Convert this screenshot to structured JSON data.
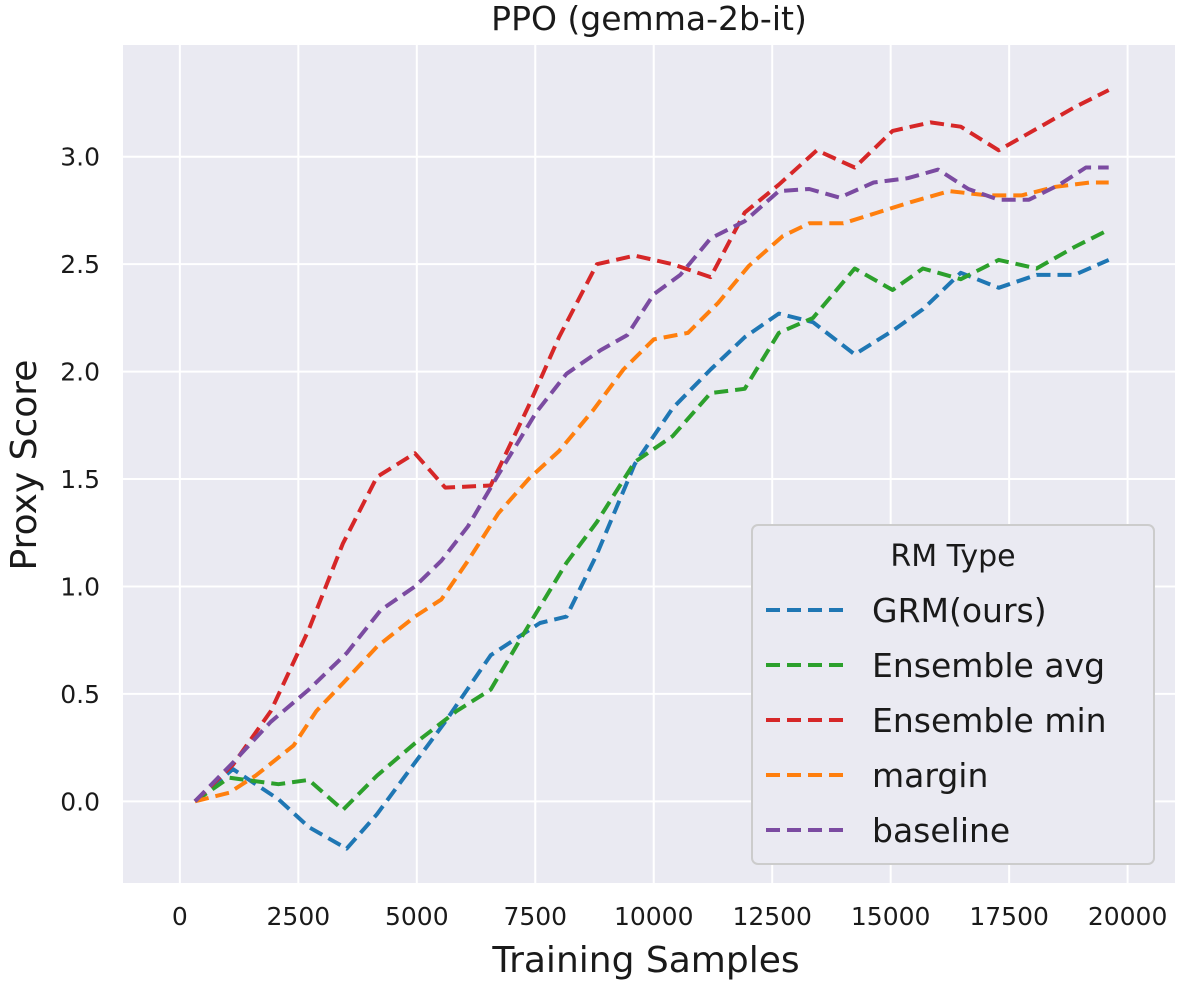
{
  "chart_data": {
    "type": "line",
    "title": "PPO (gemma-2b-it)",
    "xlabel": "Training Samples",
    "ylabel": "Proxy Score",
    "xlim": [
      -1200,
      21000
    ],
    "ylim": [
      -0.38,
      3.52
    ],
    "xticks": [
      0,
      2500,
      5000,
      7500,
      10000,
      12500,
      15000,
      17500,
      20000
    ],
    "yticks": [
      0.0,
      0.5,
      1.0,
      1.5,
      2.0,
      2.5,
      3.0
    ],
    "ytick_labels": [
      "0.0",
      "0.5",
      "1.0",
      "1.5",
      "2.0",
      "2.5",
      "3.0"
    ],
    "grid": true,
    "legend": {
      "title": "RM Type",
      "placement": "lower-right"
    },
    "x": [
      320,
      800,
      1120,
      1600,
      2080,
      2720,
      3520,
      4160,
      4960,
      5600,
      6080,
      6560,
      7200,
      8000,
      8800,
      9600,
      10400,
      11200,
      12000,
      12800,
      13440,
      14240,
      14880,
      15680,
      16480,
      17280,
      18080,
      18880,
      19520
    ],
    "series": [
      {
        "name": "GRM(ours)",
        "color": "#1f77b4",
        "x": [
          320,
          1120,
          2080,
          2720,
          3520,
          4160,
          4960,
          5600,
          6560,
          7600,
          8160,
          8800,
          9600,
          10400,
          11200,
          11920,
          12640,
          13360,
          14240,
          15040,
          15680,
          16480,
          17280,
          18080,
          18880,
          19600
        ],
        "values": [
          0.0,
          0.15,
          0.01,
          -0.12,
          -0.22,
          -0.06,
          0.18,
          0.37,
          0.68,
          0.83,
          0.86,
          1.15,
          1.57,
          1.83,
          2.01,
          2.16,
          2.27,
          2.23,
          2.08,
          2.19,
          2.29,
          2.46,
          2.39,
          2.45,
          2.45,
          2.52
        ]
      },
      {
        "name": "Ensemble avg",
        "color": "#2ca02c",
        "x": [
          320,
          1040,
          2080,
          2720,
          3440,
          4160,
          4960,
          5840,
          6560,
          7200,
          8160,
          8800,
          9600,
          10400,
          11200,
          11920,
          12640,
          13360,
          14240,
          15040,
          15680,
          16480,
          17280,
          18080,
          18880,
          19600
        ],
        "values": [
          0.0,
          0.11,
          0.08,
          0.1,
          -0.04,
          0.12,
          0.27,
          0.42,
          0.52,
          0.76,
          1.11,
          1.3,
          1.58,
          1.7,
          1.9,
          1.92,
          2.18,
          2.25,
          2.48,
          2.38,
          2.48,
          2.43,
          2.52,
          2.48,
          2.58,
          2.66
        ]
      },
      {
        "name": "Ensemble min",
        "color": "#d62728",
        "x": [
          320,
          1120,
          1920,
          2720,
          3440,
          4160,
          4960,
          5600,
          6560,
          7360,
          8000,
          8800,
          9600,
          10400,
          11200,
          11920,
          12640,
          13440,
          14240,
          15040,
          15840,
          16480,
          17280,
          18080,
          18880,
          19600
        ],
        "values": [
          0.0,
          0.17,
          0.42,
          0.8,
          1.2,
          1.51,
          1.62,
          1.46,
          1.47,
          1.84,
          2.16,
          2.5,
          2.54,
          2.5,
          2.44,
          2.74,
          2.87,
          3.03,
          2.95,
          3.12,
          3.16,
          3.14,
          3.03,
          3.13,
          3.23,
          3.31
        ]
      },
      {
        "name": "margin",
        "color": "#ff7f0e",
        "x": [
          320,
          1040,
          1600,
          2400,
          2880,
          3440,
          4160,
          4960,
          5520,
          6080,
          6720,
          7360,
          8000,
          8720,
          9360,
          10000,
          10720,
          11360,
          12000,
          12720,
          13280,
          14000,
          14720,
          15440,
          16240,
          17040,
          17760,
          18480,
          19200,
          19600
        ],
        "values": [
          0.0,
          0.04,
          0.12,
          0.26,
          0.42,
          0.55,
          0.72,
          0.86,
          0.94,
          1.12,
          1.34,
          1.5,
          1.63,
          1.82,
          2.01,
          2.15,
          2.18,
          2.32,
          2.49,
          2.63,
          2.69,
          2.69,
          2.74,
          2.79,
          2.84,
          2.82,
          2.82,
          2.86,
          2.88,
          2.88
        ]
      },
      {
        "name": "baseline",
        "color": "#7b4ba1",
        "x": [
          320,
          1120,
          1920,
          2720,
          3520,
          4240,
          4960,
          5520,
          6080,
          6720,
          7520,
          8160,
          8880,
          9440,
          10000,
          10560,
          11200,
          11920,
          12640,
          13280,
          13920,
          14640,
          15360,
          16000,
          16640,
          17280,
          17920,
          18560,
          19120,
          19600
        ],
        "values": [
          0.0,
          0.18,
          0.37,
          0.52,
          0.69,
          0.89,
          1.0,
          1.12,
          1.28,
          1.52,
          1.81,
          1.99,
          2.1,
          2.17,
          2.36,
          2.45,
          2.62,
          2.7,
          2.84,
          2.85,
          2.81,
          2.88,
          2.9,
          2.94,
          2.85,
          2.8,
          2.8,
          2.87,
          2.95,
          2.95
        ]
      }
    ]
  }
}
